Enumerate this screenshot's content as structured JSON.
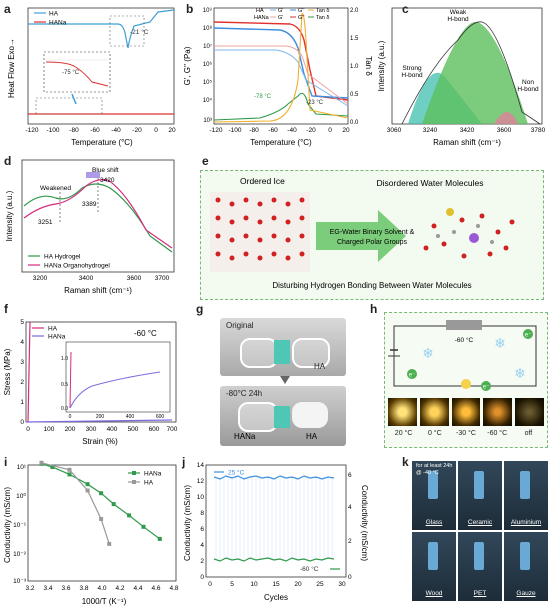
{
  "panels": {
    "a": {
      "label": "a",
      "ylabel": "Heat Flow Exo→",
      "xlabel": "Temperature (°C)",
      "xticks": [
        "-120",
        "-100",
        "-80",
        "-60",
        "-40",
        "-20",
        "0",
        "20"
      ],
      "legend": [
        "HA",
        "HANa"
      ],
      "ann_top": "-21 °C",
      "ann_inset": "-75 °C",
      "colors": {
        "HA": "#3fa0d8",
        "HANa": "#e0312f"
      }
    },
    "b": {
      "label": "b",
      "ylabel": "G', G'' (Pa)",
      "y2label": "Tan δ",
      "xlabel": "Temperature (°C)",
      "xticks": [
        "-120",
        "-100",
        "-80",
        "-60",
        "-40",
        "-20",
        "0",
        "20"
      ],
      "yticks": [
        "10⁹",
        "10⁸",
        "10⁷",
        "10⁶",
        "10⁵",
        "10⁴",
        "10³"
      ],
      "y2ticks": [
        "2.0",
        "1.5",
        "1.0",
        "0.5",
        "0.0"
      ],
      "legend_rows": [
        "HA",
        "HANa"
      ],
      "legend_cols": [
        "G'",
        "G''",
        "Tan δ"
      ],
      "ann1": "-78 °C",
      "ann2": "-23 °C"
    },
    "c": {
      "label": "c",
      "ylabel": "Intensity (a.u.)",
      "xlabel": "Raman shift (cm⁻¹)",
      "xticks": [
        "3060",
        "3240",
        "3420",
        "3600",
        "3780"
      ],
      "peak_labels": [
        "Weak\nH-bond",
        "Strong\nH-bond",
        "Non\nH-bond"
      ]
    },
    "d": {
      "label": "d",
      "ylabel": "Intensity (a.u.)",
      "xlabel": "Raman shift (cm⁻¹)",
      "xticks": [
        "3200",
        "3400",
        "3600",
        "3700"
      ],
      "ann_weakened": "Weakened",
      "ann_blueshift": "Blue shift",
      "ann_3420": "3420",
      "ann_3389": "3389",
      "ann_3251": "3251",
      "legend": [
        "HA Hydrogel",
        "HANa Organohydrogel"
      ]
    },
    "e": {
      "label": "e",
      "title_left": "Ordered Ice",
      "title_right": "Disordered Water Molecules",
      "arrow_text": "EG-Water Binary Solvent & Charged Polar Groups",
      "bottom": "Disturbing Hydrogen Bonding Between Water Molecules"
    },
    "f": {
      "label": "f",
      "ylabel": "Stress (MPa)",
      "xlabel": "Strain (%)",
      "temp": "-60 °C",
      "legend": [
        "HA",
        "HANa"
      ],
      "yticks": [
        "0",
        "1",
        "2",
        "3",
        "4",
        "5"
      ],
      "xticks": [
        "0",
        "100",
        "200",
        "300",
        "400",
        "500",
        "600",
        "700"
      ],
      "inset_yticks": [
        "0.0",
        "0.5",
        "1.0"
      ],
      "inset_xticks": [
        "0",
        "200",
        "400",
        "600"
      ]
    },
    "g": {
      "label": "g",
      "top_text": "Original",
      "bottom_text": "-80°C 24h",
      "left_label": "HANa",
      "right_label": "HA"
    },
    "h": {
      "label": "h",
      "temp": "-60 °C",
      "electron": "e⁻",
      "photos": [
        "20 °C",
        "0 °C",
        "-30 °C",
        "-60 °C",
        "off"
      ]
    },
    "i": {
      "label": "i",
      "ylabel": "Conductivity (mS/cm)",
      "xlabel": "1000/T (K⁻¹)",
      "xticks": [
        "3.2",
        "3.4",
        "3.6",
        "3.8",
        "4.0",
        "4.2",
        "4.4",
        "4.6",
        "4.8"
      ],
      "yticks": [
        "10¹",
        "10⁰",
        "10⁻¹",
        "10⁻²",
        "10⁻³"
      ],
      "legend": [
        "HANa",
        "HA"
      ]
    },
    "j": {
      "label": "j",
      "ylabel": "Conductivity (mS/cm)",
      "y2label": "Conductivity (mS/cm)",
      "xlabel": "Cycles",
      "xticks": [
        "0",
        "5",
        "10",
        "15",
        "20",
        "25",
        "30"
      ],
      "yticks": [
        "0",
        "2",
        "4",
        "6",
        "8",
        "10",
        "12",
        "14"
      ],
      "y2ticks": [
        "0",
        "2",
        "4",
        "6"
      ],
      "temp_top": "25 °C",
      "temp_bottom": "-60 °C"
    },
    "k": {
      "label": "k",
      "note": "for at least 24h\n@ -40 °C",
      "substrates": [
        "Glass",
        "Ceramic",
        "Aluminium",
        "Wood",
        "PET",
        "Gauze"
      ]
    }
  },
  "chart_data": [
    {
      "panel": "i",
      "type": "line",
      "xlabel": "1000/T (K⁻¹)",
      "ylabel": "Conductivity (mS/cm)",
      "yscale": "log",
      "series": [
        {
          "name": "HANa",
          "x": [
            3.35,
            3.47,
            3.66,
            3.86,
            4.01,
            4.15,
            4.32,
            4.48,
            4.66
          ],
          "y": [
            13,
            10,
            5.5,
            2.5,
            1.2,
            0.5,
            0.2,
            0.08,
            0.03
          ]
        },
        {
          "name": "HA",
          "x": [
            3.35,
            3.66,
            3.86,
            4.01,
            4.1
          ],
          "y": [
            14,
            8,
            1.5,
            0.15,
            0.02
          ]
        }
      ]
    },
    {
      "panel": "j",
      "type": "line",
      "xlabel": "Cycles",
      "ylabel": "Conductivity (mS/cm)",
      "series": [
        {
          "name": "25 °C",
          "y_approx": 12.5
        },
        {
          "name": "-60 °C",
          "y_approx": 2.3
        }
      ]
    }
  ],
  "colors": {
    "green": "#2e9a4a",
    "blue": "#3c8fe0",
    "red": "#e0312f",
    "pink": "#d62a7e",
    "purple": "#7d6be0",
    "gray": "#888888"
  }
}
